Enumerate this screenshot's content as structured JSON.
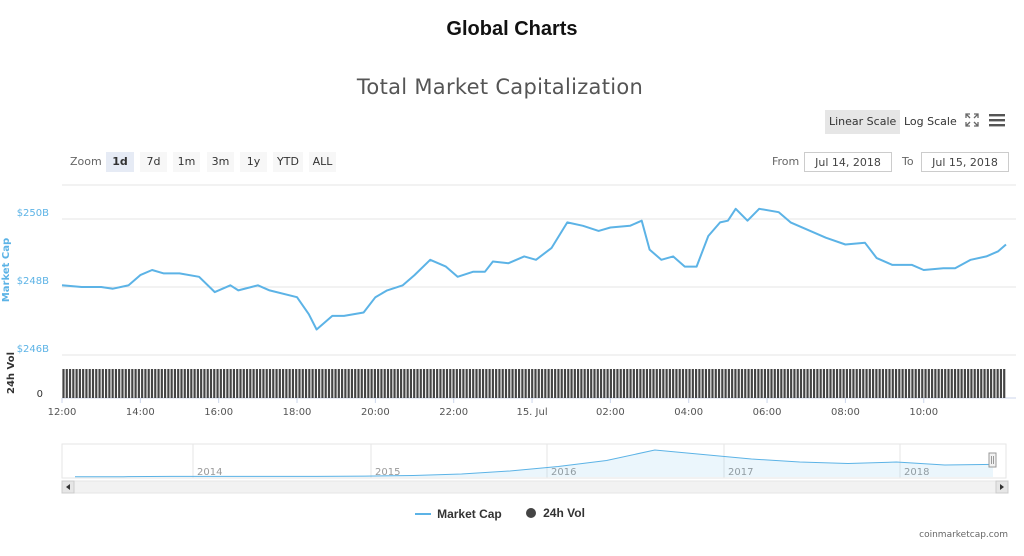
{
  "page": {
    "title": "Global Charts"
  },
  "toolbar": {
    "linear_label": "Linear Scale",
    "log_label": "Log Scale",
    "zoom_label": "Zoom",
    "zoom_options": [
      "1d",
      "7d",
      "1m",
      "3m",
      "1y",
      "YTD",
      "ALL"
    ],
    "zoom_selected": "1d",
    "from_label": "From",
    "to_label": "To",
    "from_value": "Jul 14, 2018",
    "to_value": "Jul 15, 2018"
  },
  "legend": {
    "market_cap": "Market Cap",
    "vol": "24h Vol"
  },
  "credit": "coinmarketcap.com",
  "colors": {
    "line": "#5cb3e6",
    "volume": "#444444",
    "axis_blue": "#5cb3e6",
    "text": "#555555"
  },
  "chart_data": {
    "type": "line",
    "title": "Total Market Capitalization",
    "ylabel": "Market Cap",
    "ylabel2": "24h Vol",
    "yticks": [
      "$246B",
      "$248B",
      "$250B"
    ],
    "ytick_values": [
      246,
      248,
      250
    ],
    "vol_tick": "0",
    "ylim": [
      246,
      251
    ],
    "xticks": [
      "12:00",
      "14:00",
      "16:00",
      "18:00",
      "20:00",
      "22:00",
      "15. Jul",
      "02:00",
      "04:00",
      "06:00",
      "08:00",
      "10:00"
    ],
    "xtick_hours": [
      0,
      2,
      4,
      6,
      8,
      10,
      12,
      14,
      16,
      18,
      20,
      22
    ],
    "xlim_hours": [
      0,
      24.1
    ],
    "series": [
      {
        "name": "Market Cap",
        "hours": [
          0,
          0.5,
          1,
          1.3,
          1.7,
          2,
          2.3,
          2.6,
          3,
          3.5,
          3.9,
          4.3,
          4.5,
          5,
          5.3,
          6,
          6.3,
          6.5,
          6.9,
          7.2,
          7.7,
          8,
          8.3,
          8.7,
          9,
          9.4,
          9.8,
          10.1,
          10.5,
          10.8,
          11,
          11.4,
          11.8,
          12.1,
          12.5,
          12.9,
          13.3,
          13.7,
          14,
          14.5,
          14.8,
          15,
          15.3,
          15.6,
          15.9,
          16.2,
          16.5,
          16.8,
          17,
          17.2,
          17.5,
          17.8,
          18.3,
          18.6,
          19,
          19.5,
          20,
          20.5,
          20.8,
          21.2,
          21.7,
          22,
          22.5,
          22.8,
          23.2,
          23.6,
          23.9,
          24.1
        ],
        "values": [
          248.05,
          248.0,
          248.0,
          247.95,
          248.05,
          248.35,
          248.5,
          248.4,
          248.4,
          248.3,
          247.85,
          248.05,
          247.9,
          248.05,
          247.9,
          247.7,
          247.2,
          246.75,
          247.15,
          247.15,
          247.25,
          247.7,
          247.9,
          248.05,
          248.35,
          248.8,
          248.6,
          248.3,
          248.45,
          248.45,
          248.75,
          248.7,
          248.9,
          248.8,
          249.15,
          249.9,
          249.8,
          249.65,
          249.75,
          249.8,
          249.95,
          249.1,
          248.8,
          248.9,
          248.6,
          248.6,
          249.5,
          249.9,
          249.95,
          250.3,
          249.95,
          250.3,
          250.2,
          249.9,
          249.7,
          249.45,
          249.25,
          249.3,
          248.85,
          248.65,
          248.65,
          248.5,
          248.55,
          248.55,
          248.8,
          248.9,
          249.05,
          249.25
        ]
      }
    ],
    "navigator": {
      "years": [
        "2014",
        "2015",
        "2016",
        "2017",
        "2018"
      ],
      "values": [
        0.01,
        0.01,
        0.02,
        0.02,
        0.02,
        0.02,
        0.03,
        0.05,
        0.1,
        0.2,
        0.35,
        0.55,
        0.9,
        0.75,
        0.6,
        0.5,
        0.45,
        0.5,
        0.4,
        0.42
      ]
    }
  }
}
